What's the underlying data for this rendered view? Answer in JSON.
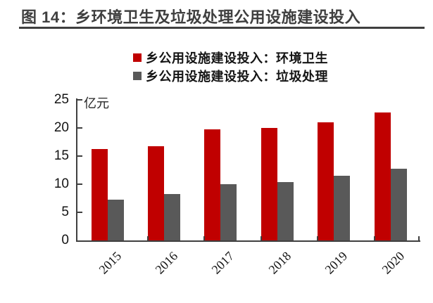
{
  "title": {
    "text": "图 14：乡环境卫生及垃圾处理公用设施建设投入"
  },
  "legend": [
    {
      "label": "乡公用设施建设投入：环境卫生",
      "color": "#c00000"
    },
    {
      "label": "乡公用设施建设投入：垃圾处理",
      "color": "#595959"
    }
  ],
  "chart_data": {
    "type": "bar",
    "title": "图 14：乡环境卫生及垃圾处理公用设施建设投入",
    "categories": [
      "2015",
      "2016",
      "2017",
      "2018",
      "2019",
      "2020"
    ],
    "series": [
      {
        "name": "乡公用设施建设投入：环境卫生",
        "key": "huanjing-weisheng",
        "color": "#c00000",
        "values": [
          16.2,
          16.8,
          19.7,
          20.0,
          21.0,
          22.8
        ]
      },
      {
        "name": "乡公用设施建设投入：垃圾处理",
        "key": "laji-chuli",
        "color": "#595959",
        "values": [
          7.2,
          8.3,
          10.0,
          10.4,
          11.5,
          12.8
        ]
      }
    ],
    "unit_label": "亿元",
    "ylabel": "亿元",
    "xlabel": "",
    "y_ticks": [
      0,
      5,
      10,
      15,
      20,
      25
    ],
    "ylim": [
      0,
      25
    ],
    "grid": false,
    "legend_position": "top",
    "x_tick_label_rotation": -45,
    "axis_color": "#3f3f3f"
  }
}
